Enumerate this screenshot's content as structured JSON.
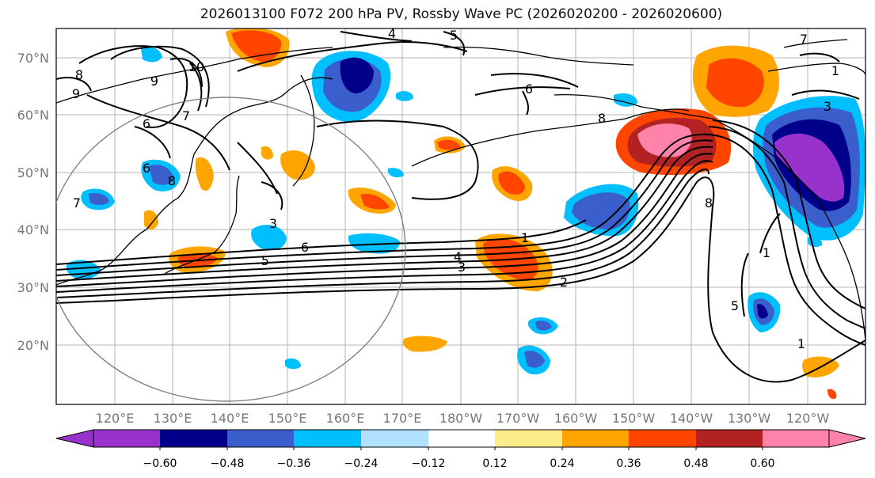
{
  "title": "2026013100 F072 200 hPa PV, Rossby Wave PC (2026020200 - 2026020600)",
  "map": {
    "lat_ticks": [
      "70°N",
      "60°N",
      "50°N",
      "40°N",
      "30°N",
      "20°N"
    ],
    "lon_ticks": [
      "120°E",
      "130°E",
      "140°E",
      "150°E",
      "160°E",
      "170°E",
      "180°W",
      "170°W",
      "160°W",
      "150°W",
      "140°W",
      "130°W",
      "120°W"
    ],
    "contour_labels": [
      "4",
      "5",
      "6",
      "7",
      "8",
      "9",
      "10",
      "6",
      "7",
      "8",
      "9",
      "5",
      "6",
      "4",
      "3",
      "2",
      "1",
      "8",
      "1",
      "1",
      "5",
      "3",
      "1",
      "7",
      "6",
      "8",
      "3"
    ]
  },
  "colorbar": {
    "tick_labels": [
      "−0.60",
      "−0.48",
      "−0.36",
      "−0.24",
      "−0.12",
      "0.12",
      "0.24",
      "0.36",
      "0.48",
      "0.60"
    ],
    "colors": [
      "#9932CC",
      "#00008B",
      "#3A5FCD",
      "#00BFFF",
      "#B0E2FF",
      "#FFFFFF",
      "#FFEC8B",
      "#FFA500",
      "#FF4500",
      "#B22222",
      "#FF82AB"
    ]
  }
}
